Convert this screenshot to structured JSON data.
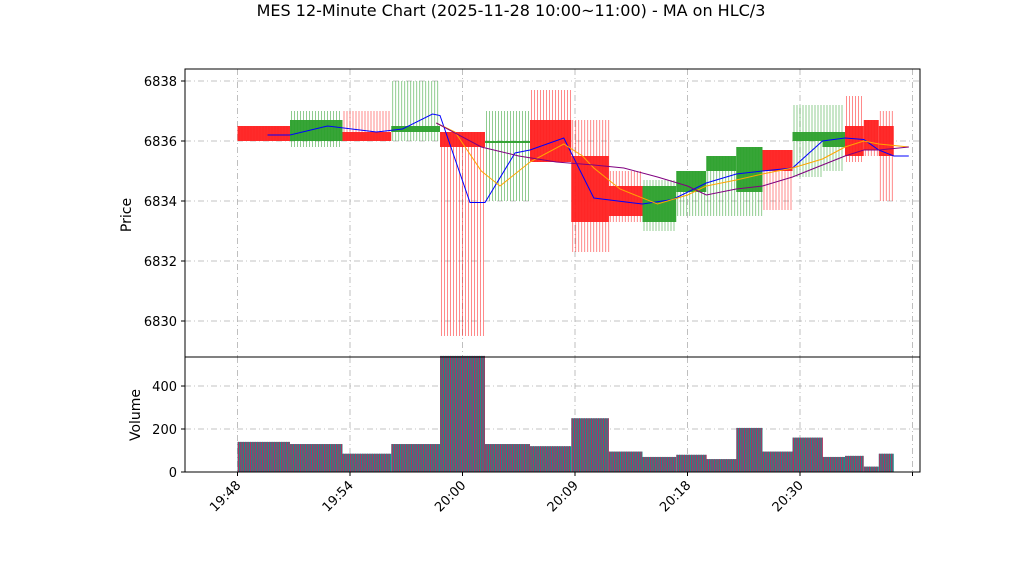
{
  "chart_data": {
    "title": "MES 12-Minute Chart (2025-11-28 10:00~11:00) - MA on HLC/3",
    "price_panel": {
      "type": "candlestick",
      "ylabel": "Price",
      "ylim": [
        6828.8,
        6838.4
      ],
      "yticks": [
        6830,
        6832,
        6834,
        6836,
        6838
      ],
      "grid": true
    },
    "volume_panel": {
      "type": "bar",
      "ylabel": "Volume",
      "ylim": [
        0,
        535
      ],
      "yticks": [
        0,
        200,
        400
      ],
      "grid": true
    },
    "x_range": [
      -1.4,
      18.2
    ],
    "x_ticks": [
      {
        "pos": 0,
        "label": "19:48"
      },
      {
        "pos": 3,
        "label": "19:54"
      },
      {
        "pos": 6,
        "label": "20:00"
      },
      {
        "pos": 9,
        "label": "20:09"
      },
      {
        "pos": 12,
        "label": "20:18"
      },
      {
        "pos": 15,
        "label": "20:30"
      },
      {
        "pos": 18,
        "label": ""
      }
    ],
    "candles": [
      {
        "x0": 0.0,
        "x1": 1.4,
        "open": 6836.5,
        "high": 6836.5,
        "low": 6836.0,
        "close": 6836.0,
        "volume": 140
      },
      {
        "x0": 1.4,
        "x1": 2.8,
        "open": 6836.0,
        "high": 6837.0,
        "low": 6835.8,
        "close": 6836.7,
        "volume": 130
      },
      {
        "x0": 2.8,
        "x1": 4.1,
        "open": 6836.3,
        "high": 6837.0,
        "low": 6836.0,
        "close": 6836.0,
        "volume": 85
      },
      {
        "x0": 4.1,
        "x1": 5.4,
        "open": 6836.3,
        "high": 6838.0,
        "low": 6836.0,
        "close": 6836.5,
        "volume": 130
      },
      {
        "x0": 5.4,
        "x1": 6.6,
        "open": 6836.3,
        "high": 6836.3,
        "low": 6829.5,
        "close": 6835.8,
        "volume": 540
      },
      {
        "x0": 6.6,
        "x1": 7.8,
        "open": 6836.0,
        "high": 6837.0,
        "low": 6834.0,
        "close": 6836.0,
        "volume": 130
      },
      {
        "x0": 7.8,
        "x1": 8.9,
        "open": 6836.7,
        "high": 6837.7,
        "low": 6835.3,
        "close": 6835.3,
        "volume": 120
      },
      {
        "x0": 8.9,
        "x1": 9.9,
        "open": 6835.5,
        "high": 6836.7,
        "low": 6832.3,
        "close": 6833.3,
        "volume": 250
      },
      {
        "x0": 9.9,
        "x1": 10.8,
        "open": 6834.5,
        "high": 6835.0,
        "low": 6833.3,
        "close": 6833.5,
        "volume": 95
      },
      {
        "x0": 10.8,
        "x1": 11.7,
        "open": 6833.3,
        "high": 6834.7,
        "low": 6833.0,
        "close": 6834.5,
        "volume": 70
      },
      {
        "x0": 11.7,
        "x1": 12.5,
        "open": 6834.3,
        "high": 6835.0,
        "low": 6833.5,
        "close": 6835.0,
        "volume": 80
      },
      {
        "x0": 12.5,
        "x1": 13.3,
        "open": 6835.0,
        "high": 6835.5,
        "low": 6833.5,
        "close": 6835.5,
        "volume": 60
      },
      {
        "x0": 13.3,
        "x1": 14.0,
        "open": 6834.3,
        "high": 6835.8,
        "low": 6833.5,
        "close": 6835.8,
        "volume": 205
      },
      {
        "x0": 14.0,
        "x1": 14.8,
        "open": 6835.7,
        "high": 6835.7,
        "low": 6833.7,
        "close": 6835.0,
        "volume": 95
      },
      {
        "x0": 14.8,
        "x1": 15.6,
        "open": 6836.0,
        "high": 6837.2,
        "low": 6834.8,
        "close": 6836.3,
        "volume": 160
      },
      {
        "x0": 15.6,
        "x1": 16.2,
        "open": 6835.8,
        "high": 6837.2,
        "low": 6835.0,
        "close": 6836.3,
        "volume": 70
      },
      {
        "x0": 16.2,
        "x1": 16.7,
        "open": 6836.5,
        "high": 6837.5,
        "low": 6835.3,
        "close": 6835.5,
        "volume": 75
      },
      {
        "x0": 16.7,
        "x1": 17.1,
        "open": 6836.7,
        "high": 6836.7,
        "low": 6835.5,
        "close": 6835.7,
        "volume": 25
      },
      {
        "x0": 17.1,
        "x1": 17.5,
        "open": 6836.5,
        "high": 6837.0,
        "low": 6834.0,
        "close": 6835.5,
        "volume": 85
      }
    ],
    "ma_lines": [
      {
        "color": "#0000ff",
        "points": [
          [
            0.8,
            6836.2
          ],
          [
            1.4,
            6836.2
          ],
          [
            2.4,
            6836.5
          ],
          [
            3.7,
            6836.3
          ],
          [
            4.4,
            6836.4
          ],
          [
            5.2,
            6836.9
          ],
          [
            5.4,
            6836.85
          ],
          [
            6.2,
            6833.95
          ],
          [
            6.6,
            6833.95
          ],
          [
            7.4,
            6835.6
          ],
          [
            7.8,
            6835.7
          ],
          [
            8.7,
            6836.1
          ],
          [
            9.5,
            6834.1
          ],
          [
            10.8,
            6833.9
          ],
          [
            11.6,
            6834.05
          ],
          [
            12.5,
            6834.6
          ],
          [
            13.3,
            6834.9
          ],
          [
            14.0,
            6835.0
          ],
          [
            14.8,
            6835.1
          ],
          [
            15.6,
            6836.0
          ],
          [
            16.2,
            6836.1
          ],
          [
            16.7,
            6836.05
          ],
          [
            17.1,
            6835.7
          ],
          [
            17.5,
            6835.5
          ],
          [
            17.9,
            6835.5
          ]
        ]
      },
      {
        "color": "#ffa500",
        "points": [
          [
            5.3,
            6836.6
          ],
          [
            5.8,
            6836.3
          ],
          [
            6.5,
            6835.0
          ],
          [
            7.0,
            6834.5
          ],
          [
            7.8,
            6835.3
          ],
          [
            8.7,
            6835.9
          ],
          [
            9.2,
            6835.5
          ],
          [
            9.5,
            6835.1
          ],
          [
            10.2,
            6834.4
          ],
          [
            11.2,
            6833.9
          ],
          [
            12.0,
            6834.2
          ],
          [
            12.5,
            6834.5
          ],
          [
            13.3,
            6834.7
          ],
          [
            14.0,
            6834.9
          ],
          [
            14.8,
            6835.1
          ],
          [
            15.6,
            6835.4
          ],
          [
            16.2,
            6835.8
          ],
          [
            16.7,
            6836.0
          ],
          [
            17.1,
            6835.9
          ],
          [
            17.9,
            6835.8
          ]
        ]
      },
      {
        "color": "#800080",
        "points": [
          [
            5.3,
            6836.6
          ],
          [
            6.5,
            6835.8
          ],
          [
            7.5,
            6835.5
          ],
          [
            8.5,
            6835.3
          ],
          [
            9.5,
            6835.2
          ],
          [
            10.3,
            6835.1
          ],
          [
            11.2,
            6834.8
          ],
          [
            12.0,
            6834.5
          ],
          [
            12.5,
            6834.2
          ],
          [
            13.3,
            6834.4
          ],
          [
            14.0,
            6834.5
          ],
          [
            14.8,
            6834.8
          ],
          [
            15.6,
            6835.2
          ],
          [
            16.2,
            6835.5
          ],
          [
            16.7,
            6835.7
          ],
          [
            17.1,
            6835.7
          ],
          [
            17.9,
            6835.8
          ]
        ]
      }
    ],
    "colors": {
      "up": "#2ca02c",
      "down": "#ff2020",
      "grid": "#b0b0b0",
      "volume_edge": "#b03060",
      "volume_fill": "#1f8a8a"
    }
  }
}
